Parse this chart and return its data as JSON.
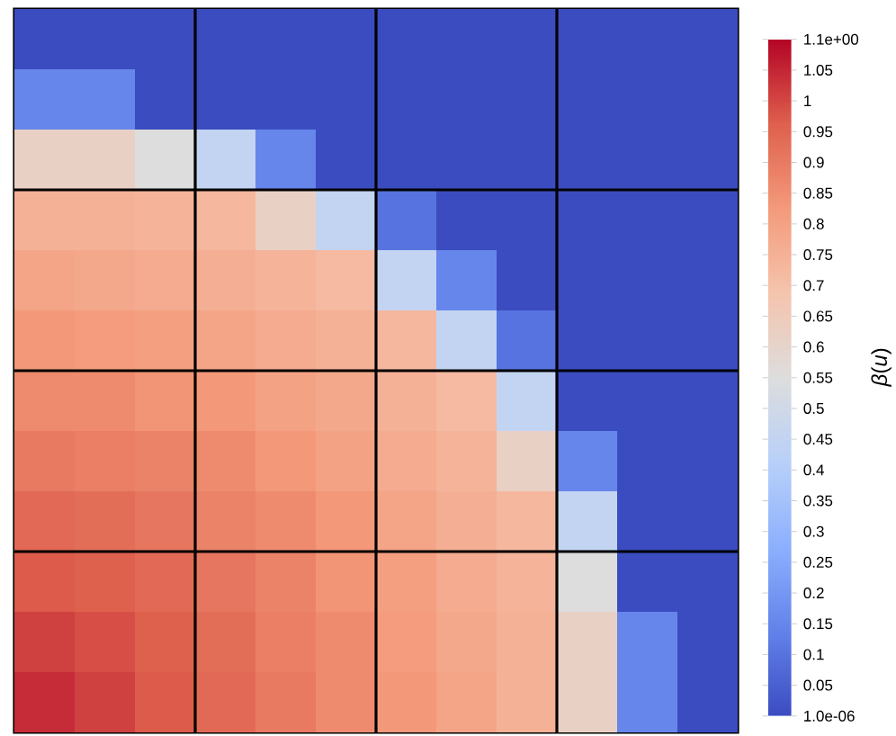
{
  "chart_data": {
    "type": "heatmap",
    "clabel": "*β*(*u*)",
    "categories": [
      null,
      null,
      null,
      null,
      null,
      null,
      null,
      null,
      null,
      null,
      null,
      null
    ],
    "y_categories": [
      null,
      null,
      null,
      null,
      null,
      null,
      null,
      null,
      null,
      null,
      null,
      null
    ],
    "cells": [
      [
        1e-06,
        1e-06,
        1e-06,
        1e-06,
        1e-06,
        1e-06,
        1e-06,
        1e-06,
        1e-06,
        1e-06,
        1e-06,
        1e-06
      ],
      [
        0.15,
        0.15,
        1e-06,
        1e-06,
        1e-06,
        1e-06,
        1e-06,
        1e-06,
        1e-06,
        1e-06,
        1e-06,
        1e-06
      ],
      [
        0.62,
        0.62,
        0.55,
        0.45,
        0.15,
        1e-06,
        1e-06,
        1e-06,
        1e-06,
        1e-06,
        1e-06,
        1e-06
      ],
      [
        0.75,
        0.75,
        0.74,
        0.73,
        0.62,
        0.45,
        0.1,
        1e-06,
        1e-06,
        1e-06,
        1e-06,
        1e-06
      ],
      [
        0.79,
        0.78,
        0.77,
        0.76,
        0.74,
        0.72,
        0.45,
        0.15,
        1e-06,
        1e-06,
        1e-06,
        1e-06
      ],
      [
        0.83,
        0.82,
        0.81,
        0.79,
        0.77,
        0.75,
        0.73,
        0.45,
        0.1,
        1e-06,
        1e-06,
        1e-06
      ],
      [
        0.86,
        0.86,
        0.84,
        0.83,
        0.8,
        0.78,
        0.75,
        0.72,
        0.45,
        1e-06,
        1e-06,
        1e-06
      ],
      [
        0.9,
        0.89,
        0.88,
        0.86,
        0.83,
        0.8,
        0.77,
        0.74,
        0.62,
        0.15,
        1e-06,
        1e-06
      ],
      [
        0.94,
        0.93,
        0.91,
        0.88,
        0.86,
        0.83,
        0.79,
        0.76,
        0.73,
        0.45,
        1e-06,
        1e-06
      ],
      [
        0.97,
        0.96,
        0.94,
        0.91,
        0.88,
        0.84,
        0.81,
        0.77,
        0.74,
        0.55,
        1e-06,
        1e-06
      ],
      [
        1.01,
        0.99,
        0.96,
        0.93,
        0.89,
        0.86,
        0.82,
        0.78,
        0.75,
        0.62,
        0.15,
        1e-06
      ],
      [
        1.04,
        1.01,
        0.97,
        0.94,
        0.9,
        0.86,
        0.83,
        0.79,
        0.75,
        0.62,
        0.15,
        1e-06
      ]
    ],
    "clim": [
      1e-06,
      1.1
    ],
    "cticks": [
      {
        "value": 1e-06,
        "label": "1.0e-06"
      },
      {
        "value": 0.05,
        "label": "0.05"
      },
      {
        "value": 0.1,
        "label": "0.1"
      },
      {
        "value": 0.15,
        "label": "0.15"
      },
      {
        "value": 0.2,
        "label": "0.2"
      },
      {
        "value": 0.25,
        "label": "0.25"
      },
      {
        "value": 0.3,
        "label": "0.3"
      },
      {
        "value": 0.35,
        "label": "0.35"
      },
      {
        "value": 0.4,
        "label": "0.4"
      },
      {
        "value": 0.45,
        "label": "0.45"
      },
      {
        "value": 0.5,
        "label": "0.5"
      },
      {
        "value": 0.55,
        "label": "0.55"
      },
      {
        "value": 0.6,
        "label": "0.6"
      },
      {
        "value": 0.65,
        "label": "0.65"
      },
      {
        "value": 0.7,
        "label": "0.7"
      },
      {
        "value": 0.75,
        "label": "0.75"
      },
      {
        "value": 0.8,
        "label": "0.8"
      },
      {
        "value": 0.85,
        "label": "0.85"
      },
      {
        "value": 0.9,
        "label": "0.9"
      },
      {
        "value": 0.95,
        "label": "0.95"
      },
      {
        "value": 1,
        "label": "1"
      },
      {
        "value": 1.05,
        "label": "1.05"
      },
      {
        "value": 1.1,
        "label": "1.1e+00"
      }
    ],
    "grid": true
  }
}
